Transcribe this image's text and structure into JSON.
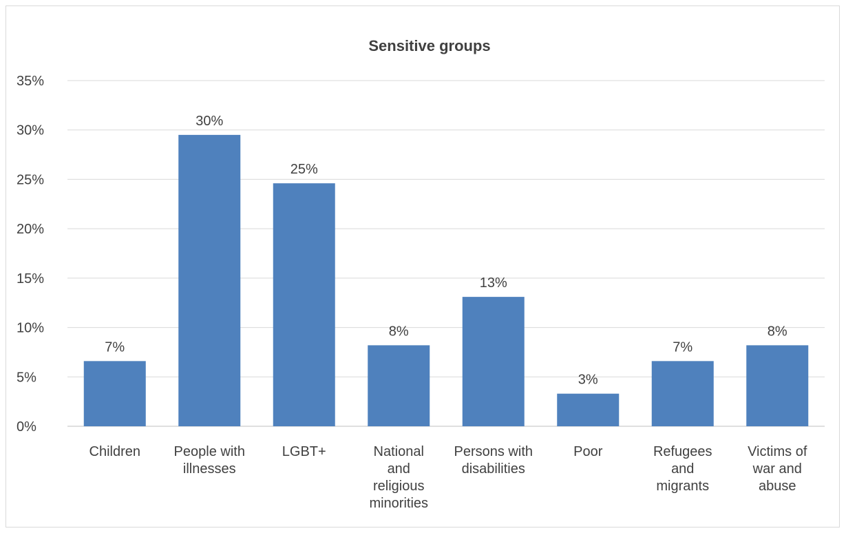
{
  "chart_data": {
    "type": "bar",
    "title": "Sensitive groups",
    "xlabel": "",
    "ylabel": "",
    "ylim": [
      0,
      35
    ],
    "y_ticks": [
      "0%",
      "5%",
      "10%",
      "15%",
      "20%",
      "25%",
      "30%",
      "35%"
    ],
    "grid": true,
    "bar_color": "#4f81bd",
    "categories": [
      [
        "Children"
      ],
      [
        "People with",
        "illnesses"
      ],
      [
        "LGBT+"
      ],
      [
        "National",
        "and",
        "religious",
        "minorities"
      ],
      [
        "Persons with",
        "disabilities"
      ],
      [
        "Poor"
      ],
      [
        "Refugees",
        "and",
        "migrants"
      ],
      [
        "Victims of",
        "war and",
        "abuse"
      ]
    ],
    "values": [
      6.6,
      29.5,
      24.6,
      8.2,
      13.1,
      3.3,
      6.6,
      8.2
    ],
    "data_labels": [
      "7%",
      "30%",
      "25%",
      "8%",
      "13%",
      "3%",
      "7%",
      "8%"
    ]
  }
}
